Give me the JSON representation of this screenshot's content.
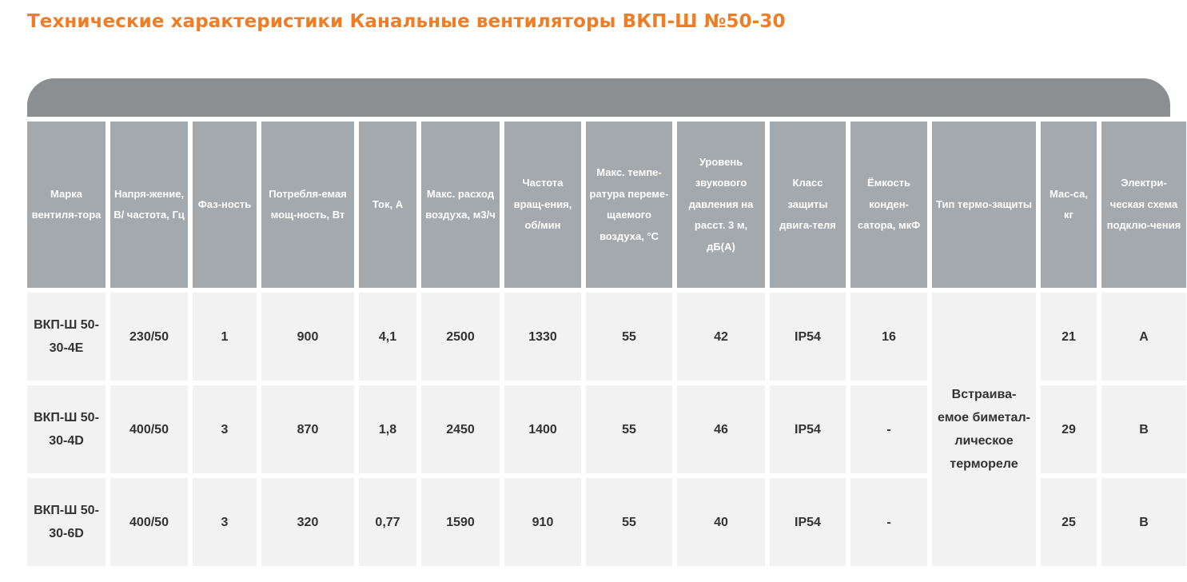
{
  "title": "Технические характеристики Канальные вентиляторы ВКП-Ш №50-30",
  "colors": {
    "title": "#ef7d26",
    "cap": "#8b8f92",
    "header": "#a4a9ad",
    "cell": "#f2f2f2"
  },
  "table": {
    "headers": [
      "Марка вентиля-тора",
      "Напря-жение, В/ частота, Гц",
      "Фаз-ность",
      "Потребля-емая мощ-ность, Вт",
      "Ток, А",
      "Макс. расход воздуха, м3/ч",
      "Частота вращ-ения, об/мин",
      "Макс. темпе-ратура переме-щаемого воздуха, °C",
      "Уровень звукового давления на расст. 3 м, дБ(А)",
      "Класс защиты двига-теля",
      "Ёмкость конден-сатора, мкФ",
      "Тип термо-защиты",
      "Мас-са, кг",
      "Электри-ческая схема подклю-чения"
    ],
    "rows": [
      [
        "ВКП-Ш 50-30-4E",
        "230/50",
        "1",
        "900",
        "4,1",
        "2500",
        "1330",
        "55",
        "42",
        "IP54",
        "16",
        "21",
        "A"
      ],
      [
        "ВКП-Ш 50-30-4D",
        "400/50",
        "3",
        "870",
        "1,8",
        "2450",
        "1400",
        "55",
        "46",
        "IP54",
        "-",
        "29",
        "B"
      ],
      [
        "ВКП-Ш 50-30-6D",
        "400/50",
        "3",
        "320",
        "0,77",
        "1590",
        "910",
        "55",
        "40",
        "IP54",
        "-",
        "25",
        "B"
      ]
    ],
    "thermal_protection": "Встраива-емое биметал-лическое термореле"
  }
}
